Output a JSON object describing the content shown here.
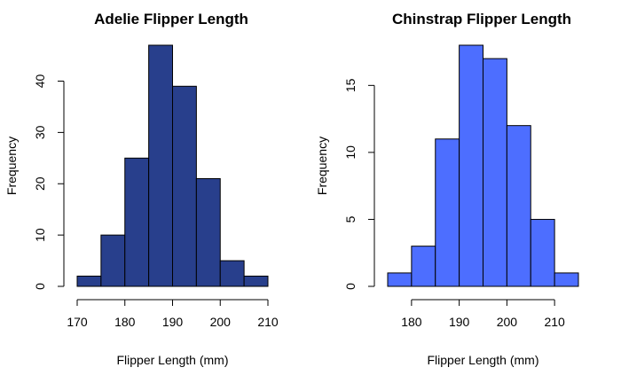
{
  "chart_data": [
    {
      "type": "bar",
      "title": "Adelie Flipper Length",
      "xlabel": "Flipper Length (mm)",
      "ylabel": "Frequency",
      "color": "#283F8C",
      "bins": [
        {
          "start": 170,
          "end": 175,
          "value": 2
        },
        {
          "start": 175,
          "end": 180,
          "value": 10
        },
        {
          "start": 180,
          "end": 185,
          "value": 25
        },
        {
          "start": 185,
          "end": 190,
          "value": 47
        },
        {
          "start": 190,
          "end": 195,
          "value": 39
        },
        {
          "start": 195,
          "end": 200,
          "value": 21
        },
        {
          "start": 200,
          "end": 205,
          "value": 5
        },
        {
          "start": 205,
          "end": 210,
          "value": 2
        }
      ],
      "xticks": [
        170,
        180,
        190,
        200,
        210
      ],
      "yticks": [
        0,
        10,
        20,
        30,
        40
      ],
      "xlim": [
        170,
        210
      ],
      "ylim": [
        0,
        47
      ]
    },
    {
      "type": "bar",
      "title": "Chinstrap Flipper Length",
      "xlabel": "Flipper Length (mm)",
      "ylabel": "Frequency",
      "color": "#4D6EFF",
      "bins": [
        {
          "start": 175,
          "end": 180,
          "value": 1
        },
        {
          "start": 180,
          "end": 185,
          "value": 3
        },
        {
          "start": 185,
          "end": 190,
          "value": 11
        },
        {
          "start": 190,
          "end": 195,
          "value": 18
        },
        {
          "start": 195,
          "end": 200,
          "value": 17
        },
        {
          "start": 200,
          "end": 205,
          "value": 12
        },
        {
          "start": 205,
          "end": 210,
          "value": 5
        },
        {
          "start": 210,
          "end": 215,
          "value": 1
        }
      ],
      "xticks": [
        180,
        190,
        200,
        210
      ],
      "yticks": [
        0,
        5,
        10,
        15
      ],
      "xlim": [
        175,
        215
      ],
      "ylim": [
        0,
        18
      ]
    }
  ]
}
